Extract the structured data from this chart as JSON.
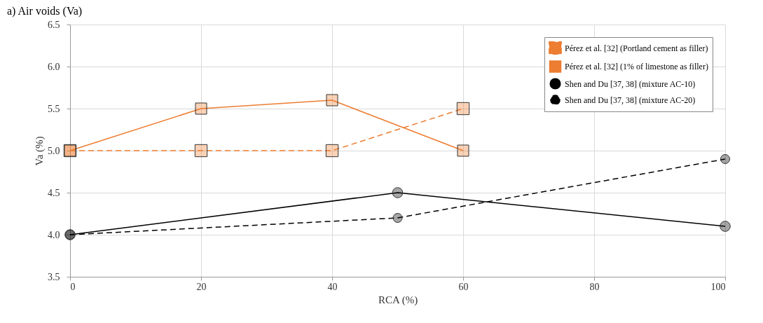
{
  "chart_data": {
    "type": "line",
    "title": "a) Air voids (Va)",
    "xlabel": "RCA (%)",
    "ylabel": "Va (%)",
    "xlim": [
      0,
      100
    ],
    "xticks": [
      0,
      20,
      40,
      60,
      80,
      100
    ],
    "ylim": [
      3.5,
      6.5
    ],
    "yticks": [
      {
        "value": 3.5,
        "label": "3.5"
      },
      {
        "value": 4,
        "label": "4.0"
      },
      {
        "value": 4.5,
        "label": "4.5"
      },
      {
        "value": 5,
        "label": "5.0"
      },
      {
        "value": 5.5,
        "label": "5.5"
      },
      {
        "value": 6,
        "label": "6.0"
      },
      {
        "value": 6.5,
        "label": "6.5"
      }
    ],
    "grid": true,
    "legend": "top right",
    "series": [
      {
        "name": "Pérez et al. [32] (Portland cement as filler)",
        "color": "#ed7d31",
        "x": [
          0,
          20,
          40,
          60
        ],
        "values": [
          5.0,
          5.0,
          5.0,
          5.5
        ],
        "marker": "square",
        "line_style": "dashed"
      },
      {
        "name": "Pérez et al. [32] (1% of limestone as filler)",
        "color": "#ed7d31",
        "x": [
          0,
          20,
          40,
          60
        ],
        "values": [
          5.0,
          5.5,
          5.6,
          5.0
        ],
        "marker": "square",
        "line_style": "solid"
      },
      {
        "name": "Shen and Du [37, 38] (mixture AC-10)",
        "color": "#000000",
        "x": [
          0,
          50,
          100
        ],
        "values": [
          4.0,
          4.5,
          4.1
        ],
        "marker": "circle",
        "line_style": "solid"
      },
      {
        "name": "Shen and Du [37, 38] (mixture AC-20)",
        "color": "#000000",
        "x": [
          0,
          50,
          100
        ],
        "values": [
          4.0,
          4.2,
          4.9
        ],
        "marker": "circle",
        "line_style": "dashed"
      }
    ]
  }
}
